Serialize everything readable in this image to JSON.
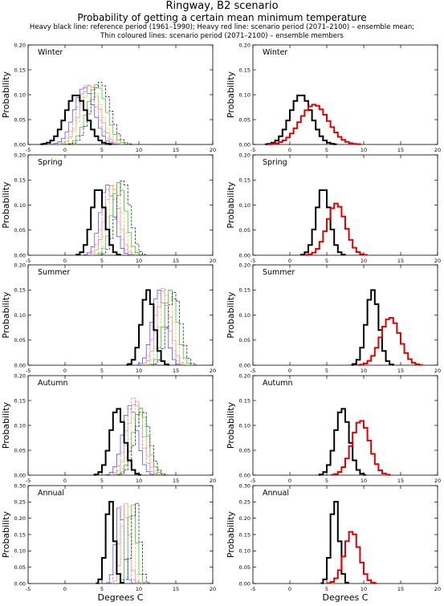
{
  "header": {
    "title": "Ringway, B2 scenario",
    "subtitle": "Probability of getting a certain mean minimum temperature",
    "line1": "Heavy black line: reference period (1961–1990); Heavy red line: scenario period (2071–2100) – ensemble mean;",
    "line2": "Thin coloured lines: scenario period (2071–2100) – ensemble members"
  },
  "common": {
    "xlabel": "Degrees C",
    "ylabel": "Probability",
    "xlim": [
      -5,
      20
    ],
    "xticks": [
      -5,
      0,
      5,
      10,
      15,
      20
    ],
    "colors": {
      "reference": "#000000",
      "scenario_mean": "#e00000",
      "members": [
        "#3a3aff",
        "#b060e0",
        "#ff8080",
        "#e8c020",
        "#20c020",
        "#101010"
      ]
    }
  },
  "chart_data": [
    {
      "panel": "Winter",
      "column": "members",
      "type": "line",
      "step": true,
      "ylim": [
        0,
        0.2
      ],
      "yticks": [
        0,
        0.05,
        0.1,
        0.15,
        0.2
      ],
      "series": [
        {
          "role": "reference",
          "mean": 1.5,
          "sd": 1.45,
          "peak": 0.1
        },
        {
          "role": "member",
          "mean": 2.6,
          "sd": 1.35,
          "peak": 0.115
        },
        {
          "role": "member",
          "mean": 3.0,
          "sd": 1.3,
          "peak": 0.12
        },
        {
          "role": "member",
          "mean": 3.4,
          "sd": 1.3,
          "peak": 0.12
        },
        {
          "role": "member",
          "mean": 3.6,
          "sd": 1.35,
          "peak": 0.115
        },
        {
          "role": "member",
          "mean": 4.3,
          "sd": 1.3,
          "peak": 0.12
        },
        {
          "role": "member",
          "mean": 4.8,
          "sd": 1.3,
          "peak": 0.125
        }
      ]
    },
    {
      "panel": "Winter",
      "column": "mean",
      "type": "line",
      "step": true,
      "ylim": [
        0,
        0.2
      ],
      "yticks": [
        0,
        0.05,
        0.1,
        0.15,
        0.2
      ],
      "series": [
        {
          "role": "reference",
          "mean": 1.5,
          "sd": 1.45,
          "peak": 0.1
        },
        {
          "role": "scenario_mean",
          "mean": 3.3,
          "sd": 1.9,
          "peak": 0.08
        }
      ]
    },
    {
      "panel": "Spring",
      "column": "members",
      "type": "line",
      "step": true,
      "ylim": [
        0,
        0.2
      ],
      "yticks": [
        0,
        0.05,
        0.1,
        0.15,
        0.2
      ],
      "series": [
        {
          "role": "reference",
          "mean": 4.5,
          "sd": 0.9,
          "peak": 0.135
        },
        {
          "role": "member",
          "mean": 5.7,
          "sd": 0.95,
          "peak": 0.14
        },
        {
          "role": "member",
          "mean": 6.1,
          "sd": 0.95,
          "peak": 0.14
        },
        {
          "role": "member",
          "mean": 6.4,
          "sd": 0.95,
          "peak": 0.14
        },
        {
          "role": "member",
          "mean": 6.8,
          "sd": 0.95,
          "peak": 0.14
        },
        {
          "role": "member",
          "mean": 7.3,
          "sd": 0.95,
          "peak": 0.145
        },
        {
          "role": "member",
          "mean": 7.9,
          "sd": 0.95,
          "peak": 0.15
        }
      ]
    },
    {
      "panel": "Spring",
      "column": "mean",
      "type": "line",
      "step": true,
      "ylim": [
        0,
        0.2
      ],
      "yticks": [
        0,
        0.05,
        0.1,
        0.15,
        0.2
      ],
      "series": [
        {
          "role": "reference",
          "mean": 4.5,
          "sd": 0.9,
          "peak": 0.135
        },
        {
          "role": "scenario_mean",
          "mean": 6.3,
          "sd": 1.25,
          "peak": 0.103
        }
      ]
    },
    {
      "panel": "Summer",
      "column": "members",
      "type": "line",
      "step": true,
      "ylim": [
        0,
        0.2
      ],
      "yticks": [
        0,
        0.05,
        0.1,
        0.15,
        0.2
      ],
      "series": [
        {
          "role": "reference",
          "mean": 11.2,
          "sd": 0.85,
          "peak": 0.15
        },
        {
          "role": "member",
          "mean": 12.7,
          "sd": 0.9,
          "peak": 0.15
        },
        {
          "role": "member",
          "mean": 13.1,
          "sd": 0.9,
          "peak": 0.155
        },
        {
          "role": "member",
          "mean": 13.4,
          "sd": 0.9,
          "peak": 0.15
        },
        {
          "role": "member",
          "mean": 13.8,
          "sd": 0.9,
          "peak": 0.15
        },
        {
          "role": "member",
          "mean": 14.3,
          "sd": 0.9,
          "peak": 0.15
        },
        {
          "role": "member",
          "mean": 14.8,
          "sd": 0.9,
          "peak": 0.145
        }
      ]
    },
    {
      "panel": "Summer",
      "column": "mean",
      "type": "line",
      "step": true,
      "ylim": [
        0,
        0.2
      ],
      "yticks": [
        0,
        0.05,
        0.1,
        0.15,
        0.2
      ],
      "series": [
        {
          "role": "reference",
          "mean": 11.2,
          "sd": 0.85,
          "peak": 0.15
        },
        {
          "role": "scenario_mean",
          "mean": 13.6,
          "sd": 1.3,
          "peak": 0.095
        }
      ]
    },
    {
      "panel": "Autumn",
      "column": "members",
      "type": "line",
      "step": true,
      "ylim": [
        0,
        0.2
      ],
      "yticks": [
        0,
        0.05,
        0.1,
        0.15,
        0.2
      ],
      "series": [
        {
          "role": "reference",
          "mean": 7.1,
          "sd": 0.95,
          "peak": 0.135
        },
        {
          "role": "member",
          "mean": 8.8,
          "sd": 1.0,
          "peak": 0.14
        },
        {
          "role": "member",
          "mean": 9.3,
          "sd": 1.0,
          "peak": 0.155
        },
        {
          "role": "member",
          "mean": 9.6,
          "sd": 1.0,
          "peak": 0.15
        },
        {
          "role": "member",
          "mean": 9.9,
          "sd": 1.0,
          "peak": 0.14
        },
        {
          "role": "member",
          "mean": 10.2,
          "sd": 1.0,
          "peak": 0.135
        },
        {
          "role": "member",
          "mean": 10.5,
          "sd": 1.0,
          "peak": 0.13
        }
      ]
    },
    {
      "panel": "Autumn",
      "column": "mean",
      "type": "line",
      "step": true,
      "ylim": [
        0,
        0.2
      ],
      "yticks": [
        0,
        0.05,
        0.1,
        0.15,
        0.2
      ],
      "series": [
        {
          "role": "reference",
          "mean": 7.1,
          "sd": 0.95,
          "peak": 0.135
        },
        {
          "role": "scenario_mean",
          "mean": 9.6,
          "sd": 1.2,
          "peak": 0.11
        }
      ]
    },
    {
      "panel": "Annual",
      "column": "members",
      "type": "line",
      "step": true,
      "ylim": [
        0,
        0.3
      ],
      "yticks": [
        0,
        0.05,
        0.1,
        0.15,
        0.2,
        0.25,
        0.3
      ],
      "series": [
        {
          "role": "reference",
          "mean": 6.1,
          "sd": 0.55,
          "peak": 0.26
        },
        {
          "role": "member",
          "mean": 7.4,
          "sd": 0.55,
          "peak": 0.24
        },
        {
          "role": "member",
          "mean": 7.9,
          "sd": 0.55,
          "peak": 0.245
        },
        {
          "role": "member",
          "mean": 8.2,
          "sd": 0.55,
          "peak": 0.245
        },
        {
          "role": "member",
          "mean": 8.6,
          "sd": 0.55,
          "peak": 0.245
        },
        {
          "role": "member",
          "mean": 9.1,
          "sd": 0.55,
          "peak": 0.25
        },
        {
          "role": "member",
          "mean": 9.6,
          "sd": 0.55,
          "peak": 0.255
        }
      ]
    },
    {
      "panel": "Annual",
      "column": "mean",
      "type": "line",
      "step": true,
      "ylim": [
        0,
        0.3
      ],
      "yticks": [
        0,
        0.05,
        0.1,
        0.15,
        0.2,
        0.25,
        0.3
      ],
      "series": [
        {
          "role": "reference",
          "mean": 6.1,
          "sd": 0.55,
          "peak": 0.26
        },
        {
          "role": "scenario_mean",
          "mean": 8.4,
          "sd": 1.0,
          "peak": 0.16
        }
      ]
    }
  ]
}
